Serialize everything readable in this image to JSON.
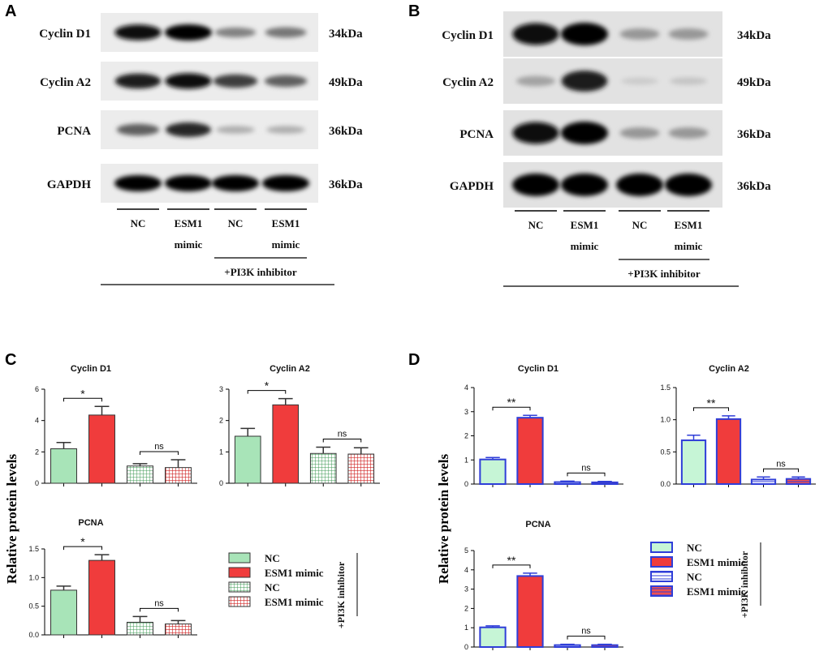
{
  "panels": {
    "A": "A",
    "B": "B",
    "C": "C",
    "D": "D"
  },
  "blots": {
    "rows": [
      "Cyclin D1",
      "Cyclin A2",
      "PCNA",
      "GAPDH"
    ],
    "sizes": [
      "34kDa",
      "49kDa",
      "36kDa",
      "36kDa"
    ],
    "lanes": [
      {
        "line1": "NC",
        "line2": ""
      },
      {
        "line1": "ESM1",
        "line2": "mimic"
      },
      {
        "line1": "NC",
        "line2": ""
      },
      {
        "line1": "ESM1",
        "line2": "mimic"
      }
    ],
    "treatment": "+PI3K inhibitor",
    "intensity_A": [
      [
        0.95,
        1.0,
        0.45,
        0.5
      ],
      [
        0.9,
        0.95,
        0.75,
        0.6
      ],
      [
        0.6,
        0.85,
        0.25,
        0.25
      ],
      [
        1.0,
        1.0,
        1.0,
        1.0
      ]
    ],
    "intensity_B": [
      [
        0.95,
        1.0,
        0.35,
        0.35
      ],
      [
        0.3,
        0.9,
        0.12,
        0.15
      ],
      [
        0.95,
        1.0,
        0.35,
        0.35
      ],
      [
        1.0,
        1.0,
        1.0,
        1.0
      ]
    ]
  },
  "ylabel": "Relative protein levels",
  "colors": {
    "C_nc": "#a8e4b8",
    "C_esm": "#f03c3c",
    "D_nc_fill": "#c6f5d6",
    "D_nc_stroke": "#2f3ed8",
    "D_esm_fill": "#f03c3c",
    "D_esm_stroke": "#2f3ed8",
    "D_inh_stroke": "#2f3ed8"
  },
  "legend": {
    "items": [
      "NC",
      "ESM1 mimic",
      "NC",
      "ESM1 mimic"
    ],
    "inhibitor": "+PI3K inhibitor"
  },
  "chart_data": [
    {
      "panel": "C",
      "type": "bar",
      "title": "Cyclin D1",
      "categories": [
        "NC",
        "ESM1 mimic",
        "NC",
        "ESM1 mimic"
      ],
      "values": [
        2.2,
        4.35,
        1.1,
        1.0
      ],
      "errors": [
        0.4,
        0.55,
        0.15,
        0.5
      ],
      "ylim": [
        0,
        6
      ],
      "yticks": [
        "0",
        "2",
        "4",
        "6"
      ],
      "annotations": [
        {
          "between": [
            0,
            1
          ],
          "text": "*"
        },
        {
          "between": [
            2,
            3
          ],
          "text": "ns"
        }
      ]
    },
    {
      "panel": "C",
      "type": "bar",
      "title": "Cyclin A2",
      "categories": [
        "NC",
        "ESM1 mimic",
        "NC",
        "ESM1 mimic"
      ],
      "values": [
        1.5,
        2.5,
        0.95,
        0.93
      ],
      "errors": [
        0.25,
        0.2,
        0.2,
        0.2
      ],
      "ylim": [
        0,
        3
      ],
      "yticks": [
        "0",
        "1",
        "2",
        "3"
      ],
      "annotations": [
        {
          "between": [
            0,
            1
          ],
          "text": "*"
        },
        {
          "between": [
            2,
            3
          ],
          "text": "ns"
        }
      ]
    },
    {
      "panel": "C",
      "type": "bar",
      "title": "PCNA",
      "categories": [
        "NC",
        "ESM1 mimic",
        "NC",
        "ESM1 mimic"
      ],
      "values": [
        0.78,
        1.3,
        0.22,
        0.19
      ],
      "errors": [
        0.07,
        0.1,
        0.1,
        0.06
      ],
      "ylim": [
        0,
        1.5
      ],
      "yticks": [
        "0.0",
        "0.5",
        "1.0",
        "1.5"
      ],
      "annotations": [
        {
          "between": [
            0,
            1
          ],
          "text": "*"
        },
        {
          "between": [
            2,
            3
          ],
          "text": "ns"
        }
      ]
    },
    {
      "panel": "D",
      "type": "bar",
      "title": "Cyclin D1",
      "categories": [
        "NC",
        "ESM1 mimic",
        "NC",
        "ESM1 mimic"
      ],
      "values": [
        1.02,
        2.75,
        0.08,
        0.07
      ],
      "errors": [
        0.08,
        0.1,
        0.04,
        0.04
      ],
      "ylim": [
        0,
        4
      ],
      "yticks": [
        "0",
        "1",
        "2",
        "3",
        "4"
      ],
      "annotations": [
        {
          "between": [
            0,
            1
          ],
          "text": "**"
        },
        {
          "between": [
            2,
            3
          ],
          "text": "ns"
        }
      ]
    },
    {
      "panel": "D",
      "type": "bar",
      "title": "Cyclin A2",
      "categories": [
        "NC",
        "ESM1 mimic",
        "NC",
        "ESM1 mimic"
      ],
      "values": [
        0.68,
        1.01,
        0.07,
        0.08
      ],
      "errors": [
        0.08,
        0.05,
        0.04,
        0.03
      ],
      "ylim": [
        0,
        1.5
      ],
      "yticks": [
        "0.0",
        "0.5",
        "1.0",
        "1.5"
      ],
      "annotations": [
        {
          "between": [
            0,
            1
          ],
          "text": "**"
        },
        {
          "between": [
            2,
            3
          ],
          "text": "ns"
        }
      ]
    },
    {
      "panel": "D",
      "type": "bar",
      "title": "PCNA",
      "categories": [
        "NC",
        "ESM1 mimic",
        "NC",
        "ESM1 mimic"
      ],
      "values": [
        1.02,
        3.68,
        0.1,
        0.1
      ],
      "errors": [
        0.08,
        0.15,
        0.04,
        0.04
      ],
      "ylim": [
        0,
        5
      ],
      "yticks": [
        "0",
        "1",
        "2",
        "3",
        "4",
        "5"
      ],
      "annotations": [
        {
          "between": [
            0,
            1
          ],
          "text": "**"
        },
        {
          "between": [
            2,
            3
          ],
          "text": "ns"
        }
      ]
    }
  ]
}
